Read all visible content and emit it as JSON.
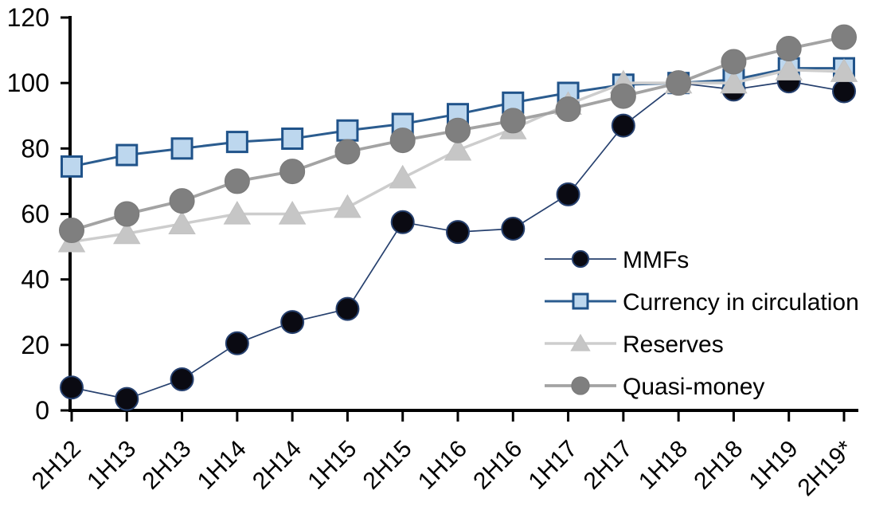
{
  "chart_data": {
    "type": "line",
    "title": "",
    "xlabel": "",
    "ylabel": "",
    "grid": false,
    "background_color": "#ffffff",
    "axis_color": "#000000",
    "categories": [
      "2H12",
      "1H13",
      "2H13",
      "1H14",
      "2H14",
      "1H15",
      "2H15",
      "1H16",
      "2H16",
      "1H17",
      "2H17",
      "1H18",
      "2H18",
      "1H19",
      "2H19*"
    ],
    "y_axis": {
      "min": 0,
      "max": 120,
      "tick_step": 20,
      "ticks": [
        0,
        20,
        40,
        60,
        80,
        100,
        120
      ]
    },
    "x_axis": {
      "label_rotation_deg": 45
    },
    "legend": {
      "position": "inside-right",
      "entries": [
        "MMFs",
        "Currency in circulation",
        "Reserves",
        "Quasi-money"
      ]
    },
    "series": [
      {
        "name": "MMFs",
        "marker_shape": "circle",
        "line_color": "#26406e",
        "line_width": 1.7,
        "marker_fill": "#0a0a12",
        "marker_stroke": "#26406e",
        "marker_stroke_width": 2,
        "marker_size": 14,
        "values": [
          7,
          3.5,
          9.5,
          20.5,
          27,
          31,
          57.5,
          54.5,
          55.5,
          66,
          87,
          100,
          98,
          100.5,
          97.5
        ]
      },
      {
        "name": "Currency in circulation",
        "marker_shape": "square",
        "line_color": "#2b5c8f",
        "line_width": 3,
        "marker_fill": "#bdd7ee",
        "marker_stroke": "#20538a",
        "marker_stroke_width": 3,
        "marker_size": 12.5,
        "values": [
          74.5,
          78,
          80,
          82,
          83,
          85.5,
          87.5,
          90.5,
          94,
          97,
          99.5,
          100,
          101,
          104.5,
          104.5
        ]
      },
      {
        "name": "Reserves",
        "marker_shape": "triangle",
        "line_color": "#cdcdcd",
        "line_width": 3.5,
        "marker_fill": "#c6c6c6",
        "marker_stroke": "#c2c2c2",
        "marker_stroke_width": 1,
        "marker_size": 14.5,
        "values": [
          51.5,
          54,
          57,
          60,
          60,
          62,
          71,
          79.5,
          86,
          93.5,
          100,
          100,
          100,
          104,
          103.5
        ]
      },
      {
        "name": "Quasi-money",
        "marker_shape": "circle",
        "line_color": "#a3a3a3",
        "line_width": 3.8,
        "marker_fill": "#7f7f7f",
        "marker_stroke": "#7a7a7a",
        "marker_stroke_width": 1,
        "marker_size": 15.5,
        "values": [
          55,
          60,
          64,
          70,
          73,
          79,
          82.5,
          85.5,
          88.5,
          92,
          96,
          100,
          106.5,
          110.5,
          114
        ]
      }
    ]
  }
}
